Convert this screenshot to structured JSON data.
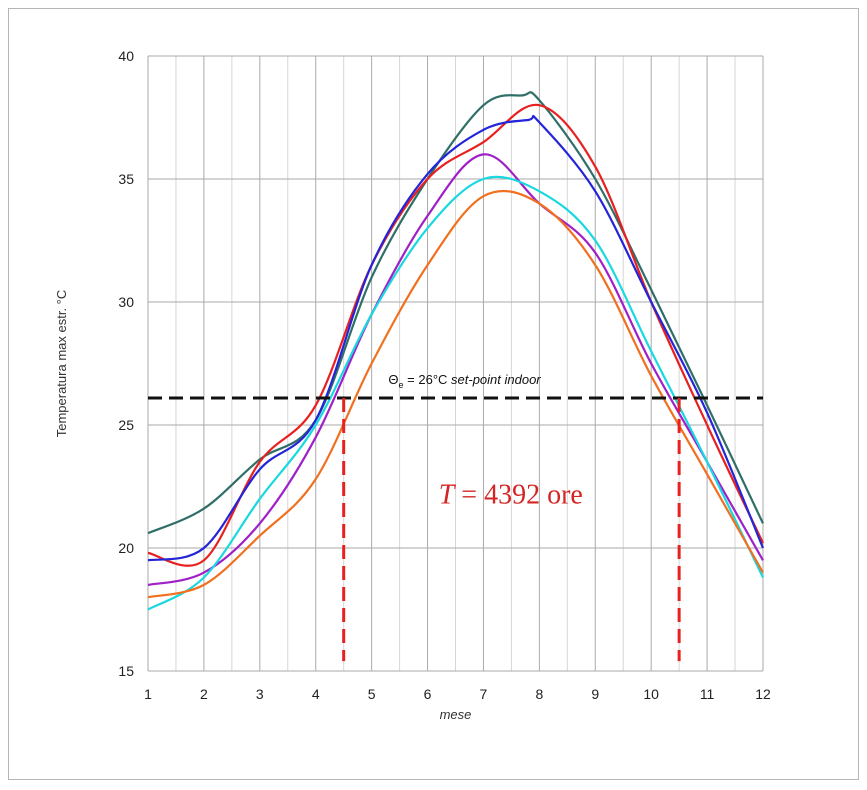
{
  "chart_data": {
    "type": "line",
    "xlabel": "mese",
    "ylabel": "Temperatura max estr. °C",
    "xlim": [
      1,
      12
    ],
    "ylim": [
      15,
      40
    ],
    "x_ticks": [
      1,
      2,
      3,
      4,
      5,
      6,
      7,
      8,
      9,
      10,
      11,
      12
    ],
    "y_ticks": [
      15,
      20,
      25,
      30,
      35,
      40
    ],
    "grid": true,
    "series": [
      {
        "color": "#2f6f67",
        "points": [
          [
            1,
            20.6
          ],
          [
            2,
            21.6
          ],
          [
            3,
            23.6
          ],
          [
            4,
            25.2
          ],
          [
            5,
            31.0
          ],
          [
            6,
            35.0
          ],
          [
            7,
            38.0
          ],
          [
            7.7,
            38.4
          ],
          [
            8,
            38.2
          ],
          [
            9,
            35.0
          ],
          [
            10,
            30.5
          ],
          [
            11,
            25.8
          ],
          [
            12,
            21.0
          ]
        ]
      },
      {
        "color": "#e82020",
        "points": [
          [
            1,
            19.8
          ],
          [
            2,
            19.5
          ],
          [
            3,
            23.5
          ],
          [
            4,
            25.8
          ],
          [
            5,
            31.5
          ],
          [
            6,
            35.0
          ],
          [
            7,
            36.5
          ],
          [
            8,
            38.0
          ],
          [
            9,
            35.5
          ],
          [
            10,
            30.0
          ],
          [
            11,
            25.0
          ],
          [
            12,
            20.2
          ]
        ]
      },
      {
        "color": "#2424d8",
        "points": [
          [
            1,
            19.5
          ],
          [
            2,
            20.0
          ],
          [
            3,
            23.2
          ],
          [
            4,
            25.2
          ],
          [
            5,
            31.5
          ],
          [
            6,
            35.2
          ],
          [
            7,
            37.0
          ],
          [
            7.8,
            37.4
          ],
          [
            8,
            37.3
          ],
          [
            9,
            34.5
          ],
          [
            10,
            30.0
          ],
          [
            11,
            25.5
          ],
          [
            12,
            20.0
          ]
        ]
      },
      {
        "color": "#a020c8",
        "points": [
          [
            1,
            18.5
          ],
          [
            2,
            19.0
          ],
          [
            3,
            21.0
          ],
          [
            4,
            24.5
          ],
          [
            5,
            29.5
          ],
          [
            6,
            33.5
          ],
          [
            7,
            36.0
          ],
          [
            8,
            34.0
          ],
          [
            9,
            32.0
          ],
          [
            10,
            27.5
          ],
          [
            11,
            23.5
          ],
          [
            12,
            19.5
          ]
        ]
      },
      {
        "color": "#18d8e0",
        "points": [
          [
            1,
            17.5
          ],
          [
            2,
            18.8
          ],
          [
            3,
            22.0
          ],
          [
            4,
            25.0
          ],
          [
            5,
            29.5
          ],
          [
            6,
            33.0
          ],
          [
            7,
            35.0
          ],
          [
            8,
            34.5
          ],
          [
            9,
            32.5
          ],
          [
            10,
            28.0
          ],
          [
            11,
            23.5
          ],
          [
            12,
            18.8
          ]
        ]
      },
      {
        "color": "#f07020",
        "points": [
          [
            1,
            18.0
          ],
          [
            2,
            18.5
          ],
          [
            3,
            20.5
          ],
          [
            4,
            22.8
          ],
          [
            5,
            27.5
          ],
          [
            6,
            31.5
          ],
          [
            7,
            34.3
          ],
          [
            8,
            34.0
          ],
          [
            9,
            31.5
          ],
          [
            10,
            27.0
          ],
          [
            11,
            23.0
          ],
          [
            12,
            19.0
          ]
        ]
      }
    ],
    "setpoint": {
      "y": 26.1,
      "color": "#111111",
      "label_symbol": "Θ",
      "label_sub": "e",
      "label_value": " = 26°C ",
      "label_italic": "set-point indoor"
    },
    "vertical_markers": [
      {
        "x": 4.5,
        "color": "#e82020"
      },
      {
        "x": 10.5,
        "color": "#e82020"
      }
    ],
    "annotation": {
      "var": "T",
      "text": " = 4392 ore",
      "x": 6.2,
      "y": 21.8,
      "color": "#d42525"
    }
  }
}
